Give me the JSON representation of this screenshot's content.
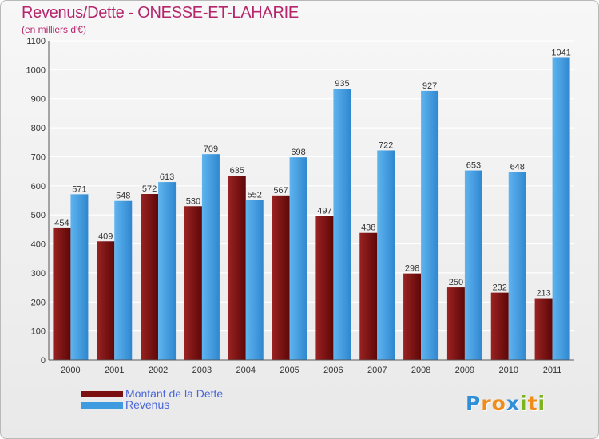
{
  "chart_data": {
    "type": "bar",
    "title": "Revenus/Dette - ONESSE-ET-LAHARIE",
    "subtitle": "(en milliers d'€)",
    "categories": [
      "2000",
      "2001",
      "2002",
      "2003",
      "2004",
      "2005",
      "2006",
      "2007",
      "2008",
      "2009",
      "2010",
      "2011"
    ],
    "series": [
      {
        "name": "Montant de la Dette",
        "color": "#7a1010",
        "values": [
          454,
          409,
          572,
          530,
          635,
          567,
          497,
          438,
          298,
          250,
          232,
          213
        ]
      },
      {
        "name": "Revenus",
        "color": "#3f9be0",
        "values": [
          571,
          548,
          613,
          709,
          552,
          698,
          935,
          722,
          927,
          653,
          648,
          1041
        ]
      }
    ],
    "ylim": [
      0,
      1100
    ],
    "yticks": [
      0,
      100,
      200,
      300,
      400,
      500,
      600,
      700,
      800,
      900,
      1000,
      1100
    ],
    "grid": true,
    "legend_position": "bottom-left"
  },
  "logo": {
    "text": "Proxiti",
    "letters": [
      "P",
      "r",
      "o",
      "x",
      "i",
      "t",
      "i"
    ],
    "colors": [
      "#2f8fd8",
      "#f08c1a",
      "#f08c1a",
      "#2f8fd8",
      "#7ab51d",
      "#f08c1a",
      "#7ab51d"
    ]
  }
}
